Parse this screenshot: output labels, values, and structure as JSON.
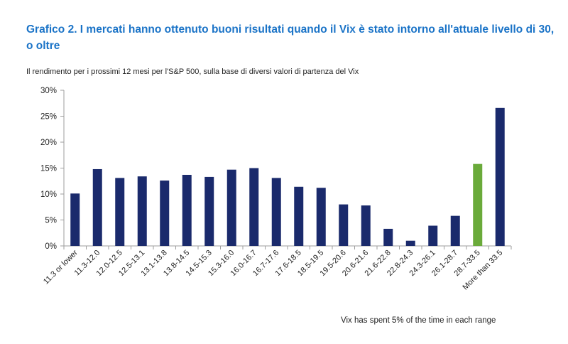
{
  "header": {
    "title": "Grafico 2. I mercati hanno ottenuto buoni risultati quando il Vix è stato intorno all'attuale livello di 30, o oltre",
    "subtitle": "Il rendimento per i prossimi 12 mesi per l'S&P 500, sulla base di diversi valori di partenza del Vix"
  },
  "footer": {
    "note": "Vix has spent 5% of the time in each range"
  },
  "colors": {
    "bar": "#1a2a6c",
    "highlight": "#6aaa3a",
    "axis": "#9e9e9e",
    "title": "#1a73c7"
  },
  "chart_data": {
    "type": "bar",
    "title": "Grafico 2. I mercati hanno ottenuto buoni risultati quando il Vix è stato intorno all'attuale livello di 30, o oltre",
    "xlabel": "",
    "ylabel": "",
    "ylim": [
      0,
      30
    ],
    "yticks": [
      0,
      5,
      10,
      15,
      20,
      25,
      30
    ],
    "ytick_labels": [
      "0%",
      "5%",
      "10%",
      "15%",
      "20%",
      "25%",
      "30%"
    ],
    "grid": false,
    "categories": [
      "11.3 or lower",
      "11.3-12.0",
      "12.0-12.5",
      "12.5-13.1",
      "13.1-13.8",
      "13.8-14.5",
      "14.5-15.3",
      "15.3-16.0",
      "16.0-16.7",
      "16.7-17.6",
      "17.6-18.5",
      "18.5-19.5",
      "19.5-20.6",
      "20.6-21.6",
      "21.6-22.8",
      "22.8-24.3",
      "24.3-26.1",
      "26.1-28.7",
      "28.7-33.5",
      "More than 33.5"
    ],
    "values": [
      10.1,
      14.8,
      13.1,
      13.4,
      12.6,
      13.7,
      13.3,
      14.7,
      15.0,
      13.1,
      11.4,
      11.2,
      8.0,
      7.8,
      3.3,
      1.0,
      3.9,
      5.8,
      15.8,
      26.6
    ],
    "highlight_index": 18
  }
}
